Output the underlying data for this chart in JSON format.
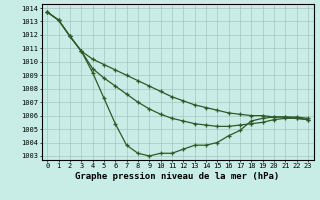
{
  "x": [
    0,
    1,
    2,
    3,
    4,
    5,
    6,
    7,
    8,
    9,
    10,
    11,
    12,
    13,
    14,
    15,
    16,
    17,
    18,
    19,
    20,
    21,
    22,
    23
  ],
  "line_top": [
    1013.7,
    1013.1,
    1011.9,
    1010.8,
    1010.2,
    1009.8,
    1009.4,
    1009.0,
    1008.6,
    1008.2,
    1007.8,
    1007.4,
    1007.1,
    1006.8,
    1006.6,
    1006.4,
    1006.2,
    1006.1,
    1006.0,
    1006.0,
    1005.9,
    1005.9,
    1005.9,
    1005.8
  ],
  "line_mid": [
    1013.7,
    1013.1,
    1011.9,
    1010.8,
    1009.5,
    1008.8,
    1008.2,
    1007.6,
    1007.0,
    1006.5,
    1006.1,
    1005.8,
    1005.6,
    1005.4,
    1005.3,
    1005.2,
    1005.2,
    1005.3,
    1005.4,
    1005.5,
    1005.7,
    1005.8,
    1005.8,
    1005.7
  ],
  "line_bot": [
    1013.7,
    1013.1,
    1011.9,
    1010.8,
    1009.2,
    1007.3,
    1005.4,
    1003.8,
    1003.2,
    1003.0,
    1003.2,
    1003.2,
    1003.5,
    1003.8,
    1003.8,
    1004.0,
    1004.5,
    1004.9,
    1005.6,
    1005.8,
    1005.9,
    1005.9,
    1005.8,
    1005.7
  ],
  "ylim_min": 1003,
  "ylim_max": 1014,
  "yticks": [
    1003,
    1004,
    1005,
    1006,
    1007,
    1008,
    1009,
    1010,
    1011,
    1012,
    1013,
    1014
  ],
  "xticks": [
    0,
    1,
    2,
    3,
    4,
    5,
    6,
    7,
    8,
    9,
    10,
    11,
    12,
    13,
    14,
    15,
    16,
    17,
    18,
    19,
    20,
    21,
    22,
    23
  ],
  "xlabel": "Graphe pression niveau de la mer (hPa)",
  "line_color": "#2d5a27",
  "bg_color": "#c8ece6",
  "grid_color": "#9dbfba",
  "marker": "+",
  "linewidth": 0.9,
  "markersize": 2.5,
  "markeredgewidth": 0.9,
  "tick_fontsize": 5.0,
  "xlabel_fontsize": 6.5
}
